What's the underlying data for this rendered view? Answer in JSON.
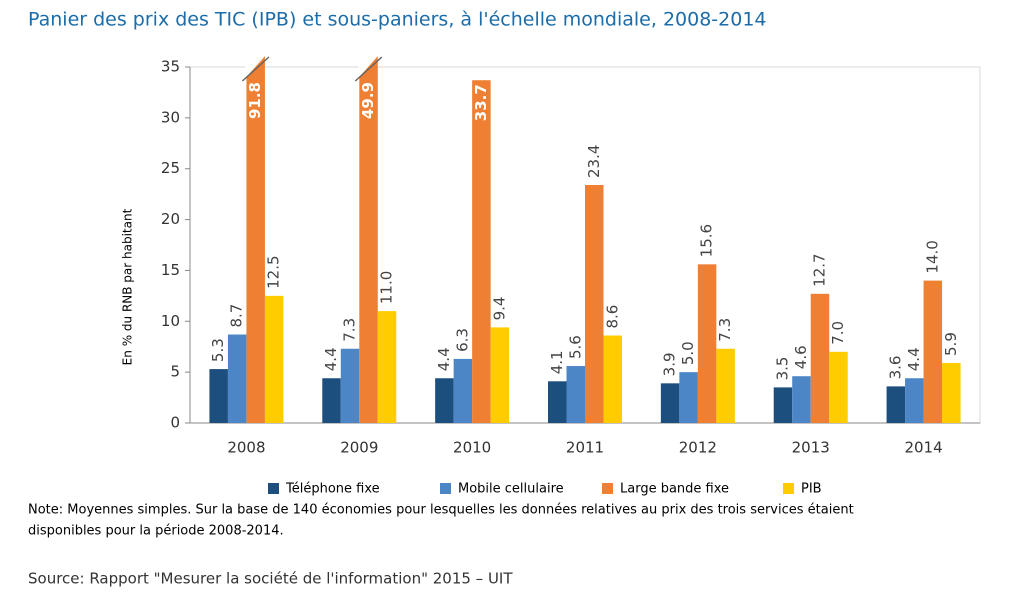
{
  "chart_data": {
    "type": "bar",
    "title": "Panier des prix des TIC (IPB) et sous-paniers, à l'échelle mondiale, 2008-2014",
    "y_label": "En % du RNB par habitant",
    "categories": [
      "2008",
      "2009",
      "2010",
      "2011",
      "2012",
      "2013",
      "2014"
    ],
    "series": [
      {
        "name": "Téléphone fixe",
        "color": "#1c4f7e",
        "values": [
          5.3,
          4.4,
          4.4,
          4.1,
          3.9,
          3.5,
          3.6
        ],
        "value_labels": [
          "5.3",
          "4.4",
          "4.4",
          "4.1",
          "3.9",
          "3.5",
          "3.6"
        ]
      },
      {
        "name": "Mobile cellulaire",
        "color": "#4d86c6",
        "values": [
          8.7,
          7.3,
          6.3,
          5.6,
          5.0,
          4.6,
          4.4
        ],
        "value_labels": [
          "8.7",
          "7.3",
          "6.3",
          "5.6",
          "5.0",
          "4.6",
          "4.4"
        ]
      },
      {
        "name": "Large bande fixe",
        "color": "#ef7f33",
        "values": [
          91.8,
          49.9,
          33.7,
          23.4,
          15.6,
          12.7,
          14.0
        ],
        "value_labels": [
          "91.8",
          "49.9",
          "33.7",
          "23.4",
          "15.6",
          "12.7",
          "14.0"
        ]
      },
      {
        "name": "PIB",
        "color": "#ffcc00",
        "values": [
          12.5,
          11.0,
          9.4,
          8.6,
          7.3,
          7.0,
          5.9
        ],
        "value_labels": [
          "12.5",
          "11.0",
          "9.4",
          "8.6",
          "7.3",
          "7.0",
          "5.9"
        ]
      }
    ],
    "ylim": [
      0,
      35
    ],
    "yticks": [
      0,
      5,
      10,
      15,
      20,
      25,
      30,
      35
    ],
    "grid": false,
    "note": "Note: Moyennes simples. Sur la base de 140 économies pour lesquelles les données relatives au prix des trois services étaient",
    "note_line2": "disponibles pour la période 2008-2014.",
    "source": "Source: Rapport \"Mesurer la société de l'information\" 2015 – UIT"
  }
}
